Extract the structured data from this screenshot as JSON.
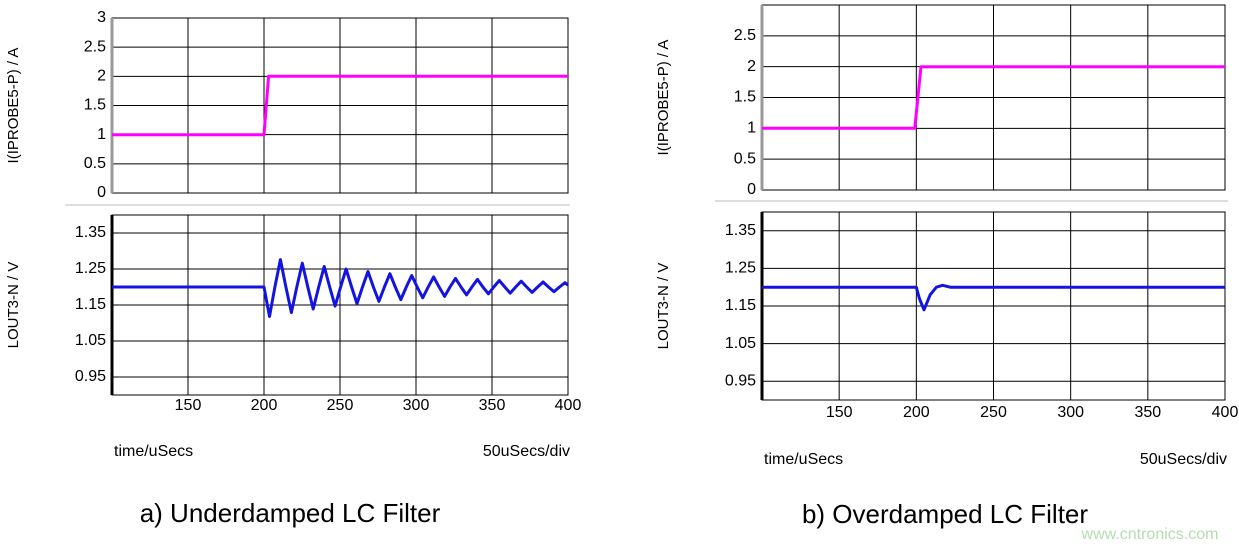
{
  "chart_data": [
    {
      "type": "line",
      "y_label": "I(IPROBE5-P) / A",
      "xlim": [
        100,
        400
      ],
      "ylim": [
        0,
        3
      ],
      "yticks": [
        0,
        0.5,
        1,
        1.5,
        2,
        2.5,
        3
      ],
      "grid": true,
      "x": [
        100,
        200,
        203,
        400
      ],
      "series": [
        {
          "color": "#ff00ff",
          "values": [
            1,
            1,
            2,
            2
          ]
        }
      ]
    },
    {
      "type": "line",
      "y_label": "LOUT3-N / V",
      "xlim": [
        100,
        400
      ],
      "ylim": [
        0.9,
        1.4
      ],
      "yticks": [
        0.95,
        1.05,
        1.15,
        1.25,
        1.35
      ],
      "xticks": [
        150,
        200,
        250,
        300,
        350,
        400
      ],
      "grid": true,
      "x_label": "time/uSecs",
      "x_scale_note": "50uSecs/div",
      "caption": "a) Underdamped LC Filter",
      "x": [
        100,
        200,
        203.6,
        207.2,
        210.8,
        214.4,
        218,
        221.6,
        225.2,
        228.8,
        232.4,
        236,
        239.6,
        243.2,
        246.8,
        250.4,
        254,
        257.6,
        261.2,
        264.8,
        268.4,
        272,
        275.6,
        279.2,
        282.8,
        286.4,
        290,
        293.6,
        297.2,
        300.8,
        304.4,
        308,
        311.6,
        315.2,
        318.8,
        322.4,
        326,
        329.6,
        333.2,
        336.8,
        340.4,
        344,
        347.6,
        351.2,
        354.8,
        358.4,
        362,
        365.6,
        369.2,
        372.8,
        376.4,
        380,
        383.6,
        387.2,
        390.8,
        394.4,
        398,
        400
      ],
      "series": [
        {
          "color": "#1414e0",
          "values": [
            1.2,
            1.2,
            1.118,
            1.2,
            1.276,
            1.2,
            1.129,
            1.2,
            1.266,
            1.2,
            1.139,
            1.2,
            1.257,
            1.2,
            1.147,
            1.2,
            1.25,
            1.2,
            1.154,
            1.2,
            1.243,
            1.2,
            1.16,
            1.2,
            1.237,
            1.2,
            1.165,
            1.2,
            1.232,
            1.2,
            1.17,
            1.2,
            1.228,
            1.2,
            1.174,
            1.2,
            1.224,
            1.2,
            1.178,
            1.2,
            1.221,
            1.2,
            1.181,
            1.2,
            1.218,
            1.2,
            1.183,
            1.2,
            1.216,
            1.2,
            1.185,
            1.2,
            1.214,
            1.2,
            1.187,
            1.2,
            1.212,
            1.205
          ]
        }
      ]
    },
    {
      "type": "line",
      "y_label": "I(IPROBE5-P) / A",
      "xlim": [
        100,
        400
      ],
      "ylim": [
        0,
        3
      ],
      "yticks": [
        0,
        0.5,
        1,
        1.5,
        2,
        2.5
      ],
      "grid": true,
      "x": [
        100,
        199,
        203,
        400
      ],
      "series": [
        {
          "color": "#ff00ff",
          "values": [
            1,
            1,
            2,
            2
          ]
        }
      ]
    },
    {
      "type": "line",
      "y_label": "LOUT3-N / V",
      "xlim": [
        100,
        400
      ],
      "ylim": [
        0.9,
        1.4
      ],
      "yticks": [
        0.95,
        1.05,
        1.15,
        1.25,
        1.35
      ],
      "xticks": [
        150,
        200,
        250,
        300,
        350,
        400
      ],
      "grid": true,
      "x_label": "time/uSecs",
      "x_scale_note": "50uSecs/div",
      "caption": "b) Overdamped LC Filter",
      "x": [
        100,
        200,
        202,
        205,
        209,
        213,
        217,
        222,
        400
      ],
      "series": [
        {
          "color": "#1414e0",
          "values": [
            1.2,
            1.2,
            1.17,
            1.14,
            1.18,
            1.2,
            1.205,
            1.2,
            1.2
          ]
        }
      ]
    }
  ],
  "watermark": "www.cntronics.com"
}
